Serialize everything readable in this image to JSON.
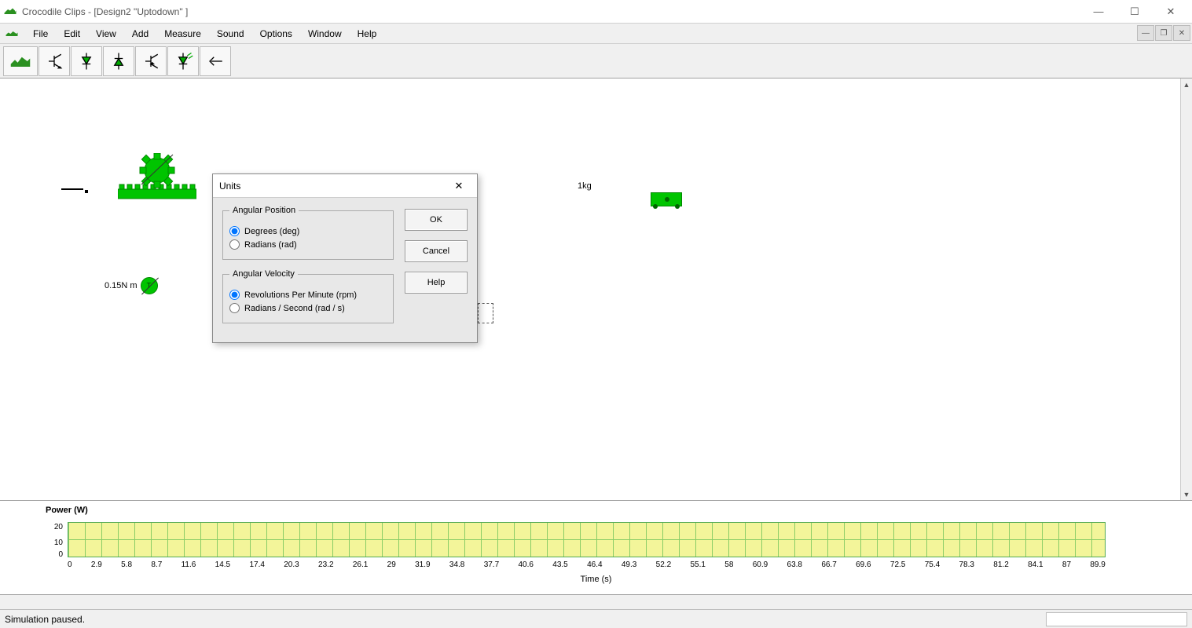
{
  "window": {
    "title": "Crocodile Clips - [Design2 \"Uptodown\" ]"
  },
  "menu": {
    "items": [
      "File",
      "Edit",
      "View",
      "Add",
      "Measure",
      "Sound",
      "Options",
      "Window",
      "Help"
    ]
  },
  "toolbar": {
    "buttons": [
      "croc-logo",
      "transistor-npn",
      "diode-down",
      "diode-up",
      "transistor-pnp",
      "led-down",
      "arrow-left"
    ]
  },
  "canvas": {
    "torque_label": "0.15N m",
    "mass_label": "1kg"
  },
  "dialog": {
    "title": "Units",
    "group1": {
      "legend": "Angular Position",
      "opt1": "Degrees (deg)",
      "opt2": "Radians (rad)",
      "selected": 0
    },
    "group2": {
      "legend": "Angular Velocity",
      "opt1": "Revolutions Per Minute (rpm)",
      "opt2": "Radians / Second (rad / s)",
      "selected": 0
    },
    "ok": "OK",
    "cancel": "Cancel",
    "help": "Help"
  },
  "chart": {
    "title": "Power (W)",
    "yticks": [
      "20",
      "10",
      "0"
    ],
    "xticks": [
      "0",
      "2.9",
      "5.8",
      "8.7",
      "11.6",
      "14.5",
      "17.4",
      "20.3",
      "23.2",
      "26.1",
      "29",
      "31.9",
      "34.8",
      "37.7",
      "40.6",
      "43.5",
      "46.4",
      "49.3",
      "52.2",
      "55.1",
      "58",
      "60.9",
      "63.8",
      "66.7",
      "69.6",
      "72.5",
      "75.4",
      "78.3",
      "81.2",
      "84.1",
      "87",
      "89.9"
    ],
    "xtitle": "Time (s)",
    "plot_bg": "#f3f59a",
    "grid_color": "#88cc66"
  },
  "status": {
    "text": "Simulation paused."
  }
}
